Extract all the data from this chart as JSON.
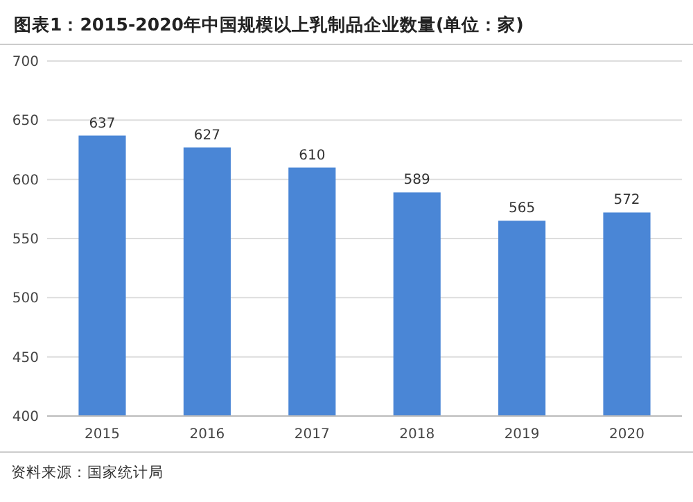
{
  "chart_data": {
    "type": "bar",
    "title": "图表1：2015-2020年中国规模以上乳制品企业数量(单位：家)",
    "categories": [
      "2015",
      "2016",
      "2017",
      "2018",
      "2019",
      "2020"
    ],
    "values": [
      637,
      627,
      610,
      589,
      565,
      572
    ],
    "color": "#4a86d6",
    "data_labels": true,
    "ylim": [
      400,
      700
    ],
    "yticks": [
      400,
      450,
      500,
      550,
      600,
      650,
      700
    ],
    "grid": "y",
    "annotations": [
      "资料来源：国家统计局"
    ]
  }
}
